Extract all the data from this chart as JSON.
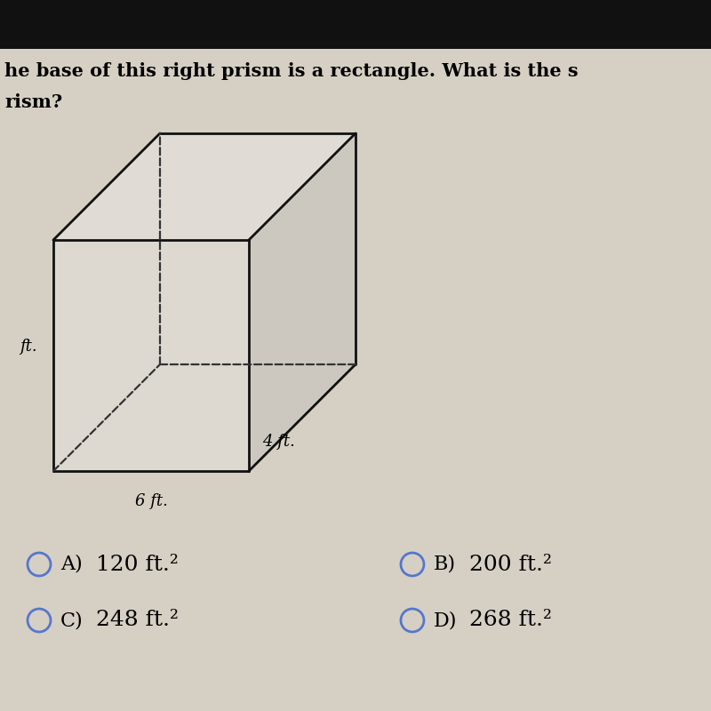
{
  "bg_color": "#d6cfc4",
  "top_bar_color": "#111111",
  "question_text_line1": "he base of this right prism is a rectangle. What is the s",
  "question_text_line2": "rism?",
  "dim_label_left": "ft.",
  "dim_label_bottom": "6 ft.",
  "dim_label_right": "4 ft.",
  "options": [
    {
      "label": "A)",
      "value": "120 ft.²",
      "col": 0,
      "row": 0
    },
    {
      "label": "C)",
      "value": "248 ft.²",
      "col": 0,
      "row": 1
    },
    {
      "label": "B)",
      "value": "200 ft.²",
      "col": 1,
      "row": 0
    },
    {
      "label": "D)",
      "value": "268 ft.²",
      "col": 1,
      "row": 1
    }
  ],
  "radio_color": "#5577cc",
  "prism_line_color": "#111111",
  "dashed_color": "#333333",
  "face_fill": "none"
}
